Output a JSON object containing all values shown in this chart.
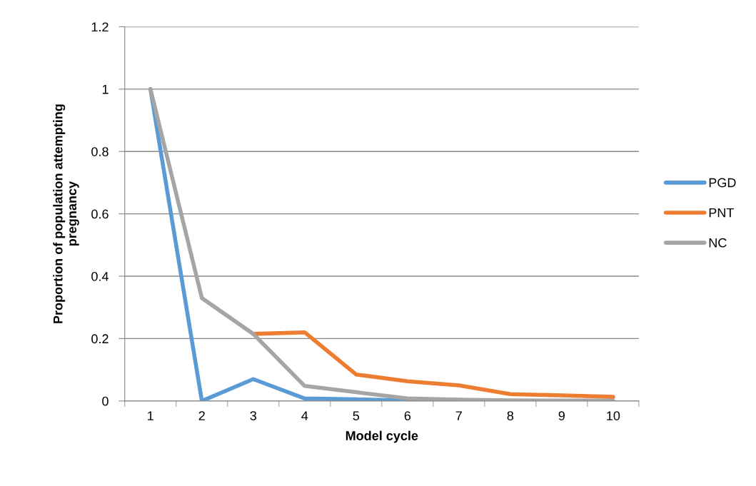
{
  "chart_data": {
    "type": "line",
    "xlabel": "Model cycle",
    "ylabel": "Proportion of population attempting\npregnancy",
    "categories": [
      "1",
      "2",
      "3",
      "4",
      "5",
      "6",
      "7",
      "8",
      "9",
      "10"
    ],
    "series": [
      {
        "name": "PGD",
        "color": "#5b9bd5",
        "values": [
          1,
          0,
          0.07,
          0.008,
          0.005,
          0.001,
          0,
          null,
          null,
          null
        ]
      },
      {
        "name": "PNT",
        "color": "#ed7d31",
        "values": [
          null,
          null,
          0.215,
          0.22,
          0.085,
          0.063,
          0.05,
          0.022,
          0.018,
          0.013
        ]
      },
      {
        "name": "NC",
        "color": "#a5a5a5",
        "values": [
          1,
          0.33,
          0.215,
          0.048,
          0.028,
          0.008,
          0.004,
          0.002,
          0.001,
          0.001
        ]
      }
    ],
    "ylim": [
      0,
      1.2
    ],
    "yticks": [
      {
        "value": 0,
        "label": "0"
      },
      0.2,
      0.4,
      0.6,
      0.8,
      {
        "value": 1,
        "label": "1"
      },
      1.2
    ],
    "grid": "y",
    "legend": "right",
    "marker": "none",
    "line_style": "solid"
  }
}
